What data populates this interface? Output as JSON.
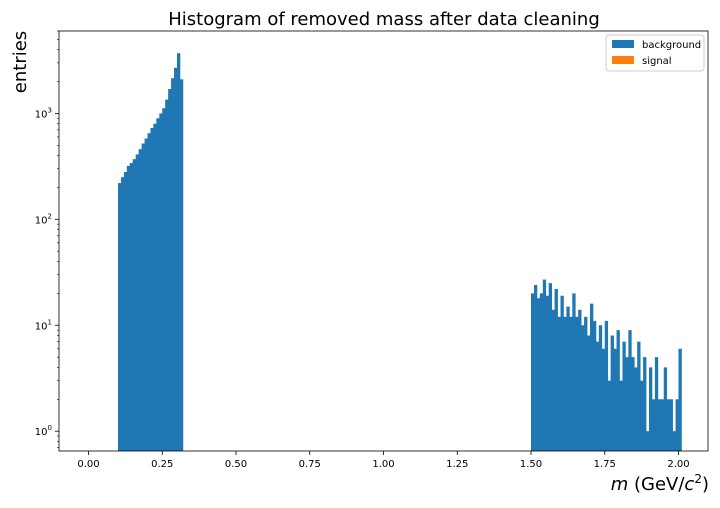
{
  "chart_data": {
    "type": "bar",
    "title": "Histogram of removed mass after data cleaning",
    "xlabel": "m (GeV/c²)",
    "xlabel_parts": {
      "var": "m",
      "unit_open": " (GeV/",
      "unit_c": "c",
      "unit_exp": "2",
      "unit_close": ")"
    },
    "ylabel": "entries",
    "x_scale": "linear",
    "y_scale": "log",
    "xlim": [
      -0.1,
      2.1
    ],
    "ylim": [
      0.65,
      6000
    ],
    "x_ticks": [
      0.0,
      0.25,
      0.5,
      0.75,
      1.0,
      1.25,
      1.5,
      1.75,
      2.0
    ],
    "x_tick_labels": [
      "0.00",
      "0.25",
      "0.50",
      "0.75",
      "1.00",
      "1.25",
      "1.50",
      "1.75",
      "2.00"
    ],
    "y_ticks": [
      1,
      10,
      100,
      1000
    ],
    "y_tick_labels": [
      "10",
      "10",
      "10",
      "10"
    ],
    "y_tick_exponents": [
      "0",
      "1",
      "2",
      "3"
    ],
    "grid": false,
    "legend": "top-right",
    "bin_width": 0.01,
    "series": [
      {
        "name": "background",
        "color": "#1f77b4",
        "bins": [
          [
            0.1,
            220
          ],
          [
            0.11,
            250
          ],
          [
            0.12,
            280
          ],
          [
            0.13,
            320
          ],
          [
            0.14,
            340
          ],
          [
            0.15,
            370
          ],
          [
            0.16,
            410
          ],
          [
            0.17,
            460
          ],
          [
            0.18,
            520
          ],
          [
            0.19,
            580
          ],
          [
            0.2,
            650
          ],
          [
            0.21,
            730
          ],
          [
            0.22,
            800
          ],
          [
            0.23,
            900
          ],
          [
            0.24,
            1000
          ],
          [
            0.25,
            1120
          ],
          [
            0.26,
            1350
          ],
          [
            0.27,
            1700
          ],
          [
            0.28,
            2150
          ],
          [
            0.29,
            2700
          ],
          [
            0.3,
            3700
          ],
          [
            0.31,
            2100
          ],
          [
            1.5,
            20
          ],
          [
            1.51,
            24
          ],
          [
            1.52,
            18
          ],
          [
            1.53,
            20
          ],
          [
            1.54,
            27
          ],
          [
            1.55,
            19
          ],
          [
            1.56,
            25
          ],
          [
            1.57,
            14
          ],
          [
            1.58,
            22
          ],
          [
            1.59,
            12
          ],
          [
            1.6,
            19
          ],
          [
            1.61,
            12
          ],
          [
            1.62,
            15
          ],
          [
            1.63,
            12
          ],
          [
            1.64,
            20
          ],
          [
            1.65,
            12
          ],
          [
            1.66,
            14
          ],
          [
            1.67,
            10
          ],
          [
            1.68,
            12
          ],
          [
            1.69,
            8
          ],
          [
            1.7,
            16
          ],
          [
            1.71,
            11
          ],
          [
            1.72,
            7
          ],
          [
            1.73,
            10
          ],
          [
            1.74,
            6
          ],
          [
            1.75,
            11
          ],
          [
            1.76,
            3
          ],
          [
            1.77,
            8
          ],
          [
            1.78,
            6
          ],
          [
            1.79,
            9
          ],
          [
            1.8,
            3
          ],
          [
            1.81,
            7
          ],
          [
            1.82,
            5
          ],
          [
            1.83,
            9
          ],
          [
            1.84,
            5
          ],
          [
            1.85,
            4
          ],
          [
            1.86,
            7
          ],
          [
            1.87,
            3
          ],
          [
            1.88,
            5
          ],
          [
            1.89,
            1
          ],
          [
            1.9,
            4
          ],
          [
            1.91,
            2
          ],
          [
            1.92,
            5
          ],
          [
            1.93,
            2
          ],
          [
            1.94,
            2
          ],
          [
            1.95,
            4
          ],
          [
            1.96,
            2
          ],
          [
            1.97,
            2
          ],
          [
            1.98,
            1
          ],
          [
            1.99,
            2
          ],
          [
            2.0,
            6
          ]
        ]
      },
      {
        "name": "signal",
        "color": "#ff7f0e",
        "bins": []
      }
    ]
  }
}
